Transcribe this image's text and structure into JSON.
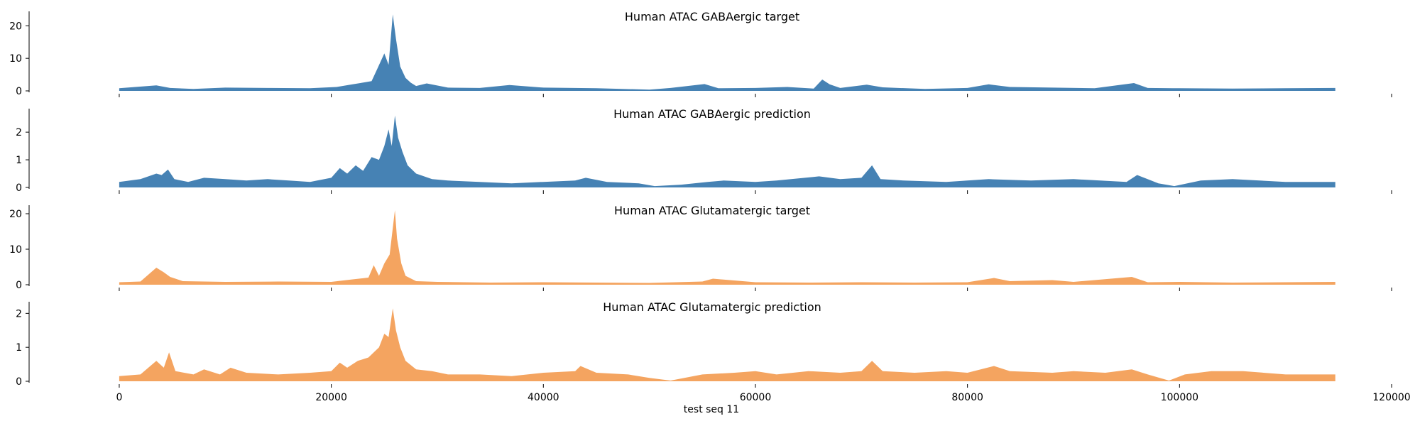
{
  "chart_data": {
    "type": "area",
    "xlabel": "test seq 11",
    "xlim": [
      -8500,
      120000
    ],
    "x_ticks": [
      0,
      20000,
      40000,
      60000,
      80000,
      100000,
      120000
    ],
    "x_tick_labels": [
      "0",
      "20000",
      "40000",
      "60000",
      "80000",
      "100000",
      "120000"
    ],
    "x_data_range": [
      0,
      114688
    ],
    "grid": false,
    "panels": [
      {
        "title": "Human ATAC GABAergic target",
        "color": "#4682b4",
        "ylim": [
          0,
          24
        ],
        "y_ticks": [
          0,
          10,
          20
        ],
        "x": [
          0,
          3500,
          4800,
          7000,
          10000,
          14000,
          18000,
          20500,
          22000,
          23800,
          24300,
          25000,
          25400,
          25800,
          26100,
          26500,
          27000,
          27500,
          28000,
          29000,
          31000,
          34000,
          36800,
          40000,
          45000,
          50000,
          52000,
          55200,
          56500,
          60000,
          63000,
          65500,
          66300,
          67000,
          68000,
          70500,
          72000,
          76000,
          80000,
          82000,
          84000,
          88000,
          92000,
          95700,
          97000,
          100000,
          105000,
          110000,
          114688
        ],
        "values": [
          0.8,
          1.7,
          0.9,
          0.6,
          1.0,
          0.9,
          0.8,
          1.2,
          2.0,
          3.0,
          6.5,
          11.5,
          8.0,
          23.5,
          16.0,
          7.5,
          4.0,
          2.5,
          1.5,
          2.3,
          1.0,
          0.9,
          1.8,
          1.0,
          0.8,
          0.4,
          0.9,
          2.1,
          0.8,
          0.9,
          1.2,
          0.7,
          3.5,
          2.0,
          0.9,
          1.9,
          1.1,
          0.6,
          0.9,
          2.0,
          1.2,
          1.0,
          0.8,
          2.4,
          0.9,
          0.8,
          0.7,
          0.8,
          0.9
        ]
      },
      {
        "title": "Human ATAC GABAergic prediction",
        "color": "#4682b4",
        "ylim": [
          0,
          2.8
        ],
        "y_ticks": [
          0,
          1,
          2
        ],
        "x": [
          0,
          2000,
          3500,
          4000,
          4600,
          5200,
          6500,
          8000,
          10000,
          12000,
          14000,
          16000,
          18000,
          20000,
          20800,
          21500,
          22300,
          23000,
          23800,
          24500,
          25000,
          25400,
          25700,
          26000,
          26300,
          26700,
          27200,
          28000,
          29500,
          31000,
          34000,
          37000,
          40000,
          43000,
          44000,
          46000,
          49000,
          50500,
          53000,
          55500,
          57000,
          60000,
          62000,
          66000,
          68000,
          70000,
          71000,
          71800,
          74000,
          78000,
          82000,
          86000,
          90000,
          95000,
          96000,
          98000,
          99500,
          102000,
          105000,
          110000,
          114688
        ],
        "values": [
          0.2,
          0.3,
          0.5,
          0.45,
          0.65,
          0.3,
          0.2,
          0.35,
          0.3,
          0.25,
          0.3,
          0.25,
          0.2,
          0.35,
          0.7,
          0.5,
          0.8,
          0.6,
          1.1,
          1.0,
          1.5,
          2.1,
          1.5,
          2.6,
          1.8,
          1.3,
          0.8,
          0.5,
          0.3,
          0.25,
          0.2,
          0.15,
          0.2,
          0.25,
          0.35,
          0.2,
          0.15,
          0.05,
          0.1,
          0.2,
          0.25,
          0.2,
          0.25,
          0.4,
          0.3,
          0.35,
          0.8,
          0.3,
          0.25,
          0.2,
          0.3,
          0.25,
          0.3,
          0.2,
          0.45,
          0.15,
          0.05,
          0.25,
          0.3,
          0.2,
          0.2
        ]
      },
      {
        "title": "Human ATAC Glutamatergic target",
        "color": "#f4a460",
        "ylim": [
          0,
          22
        ],
        "y_ticks": [
          0,
          10,
          20
        ],
        "x": [
          0,
          2000,
          3500,
          4200,
          4800,
          6000,
          10000,
          15000,
          20000,
          22000,
          23500,
          24000,
          24500,
          25000,
          25500,
          26000,
          26200,
          26600,
          27000,
          28000,
          30000,
          35000,
          40000,
          45000,
          50000,
          55000,
          56000,
          60000,
          65000,
          70000,
          75000,
          80000,
          82500,
          84000,
          88000,
          90000,
          95500,
          97000,
          100000,
          105000,
          110000,
          114688
        ],
        "values": [
          0.7,
          0.9,
          4.8,
          3.5,
          2.2,
          1.0,
          0.8,
          0.9,
          0.8,
          1.5,
          2.0,
          5.5,
          2.5,
          6.0,
          8.5,
          21.0,
          13.0,
          6.0,
          2.5,
          1.0,
          0.8,
          0.6,
          0.7,
          0.6,
          0.5,
          0.9,
          1.7,
          0.7,
          0.6,
          0.7,
          0.6,
          0.7,
          1.9,
          1.0,
          1.3,
          0.8,
          2.2,
          0.7,
          0.8,
          0.6,
          0.7,
          0.8
        ]
      },
      {
        "title": "Human ATAC Glutamatergic prediction",
        "color": "#f4a460",
        "ylim": [
          0,
          2.3
        ],
        "y_ticks": [
          0,
          1,
          2
        ],
        "x": [
          0,
          2000,
          3500,
          4200,
          4700,
          5300,
          7000,
          8000,
          9500,
          10500,
          12000,
          15000,
          18000,
          20000,
          20800,
          21500,
          22500,
          23500,
          24500,
          25000,
          25400,
          25800,
          26100,
          26500,
          27000,
          28000,
          29500,
          31000,
          34000,
          37000,
          40000,
          43000,
          43500,
          45000,
          48000,
          50000,
          52000,
          55000,
          58000,
          60000,
          62000,
          65000,
          68000,
          70000,
          71000,
          72000,
          75000,
          78000,
          80000,
          82500,
          84000,
          88000,
          90000,
          93000,
          95500,
          97000,
          99000,
          100500,
          103000,
          106000,
          110000,
          114688
        ],
        "values": [
          0.15,
          0.2,
          0.6,
          0.4,
          0.85,
          0.3,
          0.2,
          0.35,
          0.2,
          0.4,
          0.25,
          0.2,
          0.25,
          0.3,
          0.55,
          0.4,
          0.6,
          0.7,
          1.0,
          1.4,
          1.3,
          2.15,
          1.5,
          1.0,
          0.6,
          0.35,
          0.3,
          0.2,
          0.2,
          0.15,
          0.25,
          0.3,
          0.45,
          0.25,
          0.2,
          0.1,
          0.02,
          0.2,
          0.25,
          0.3,
          0.2,
          0.3,
          0.25,
          0.3,
          0.6,
          0.3,
          0.25,
          0.3,
          0.25,
          0.45,
          0.3,
          0.25,
          0.3,
          0.25,
          0.35,
          0.2,
          0.02,
          0.2,
          0.3,
          0.3,
          0.2,
          0.2
        ]
      }
    ]
  }
}
